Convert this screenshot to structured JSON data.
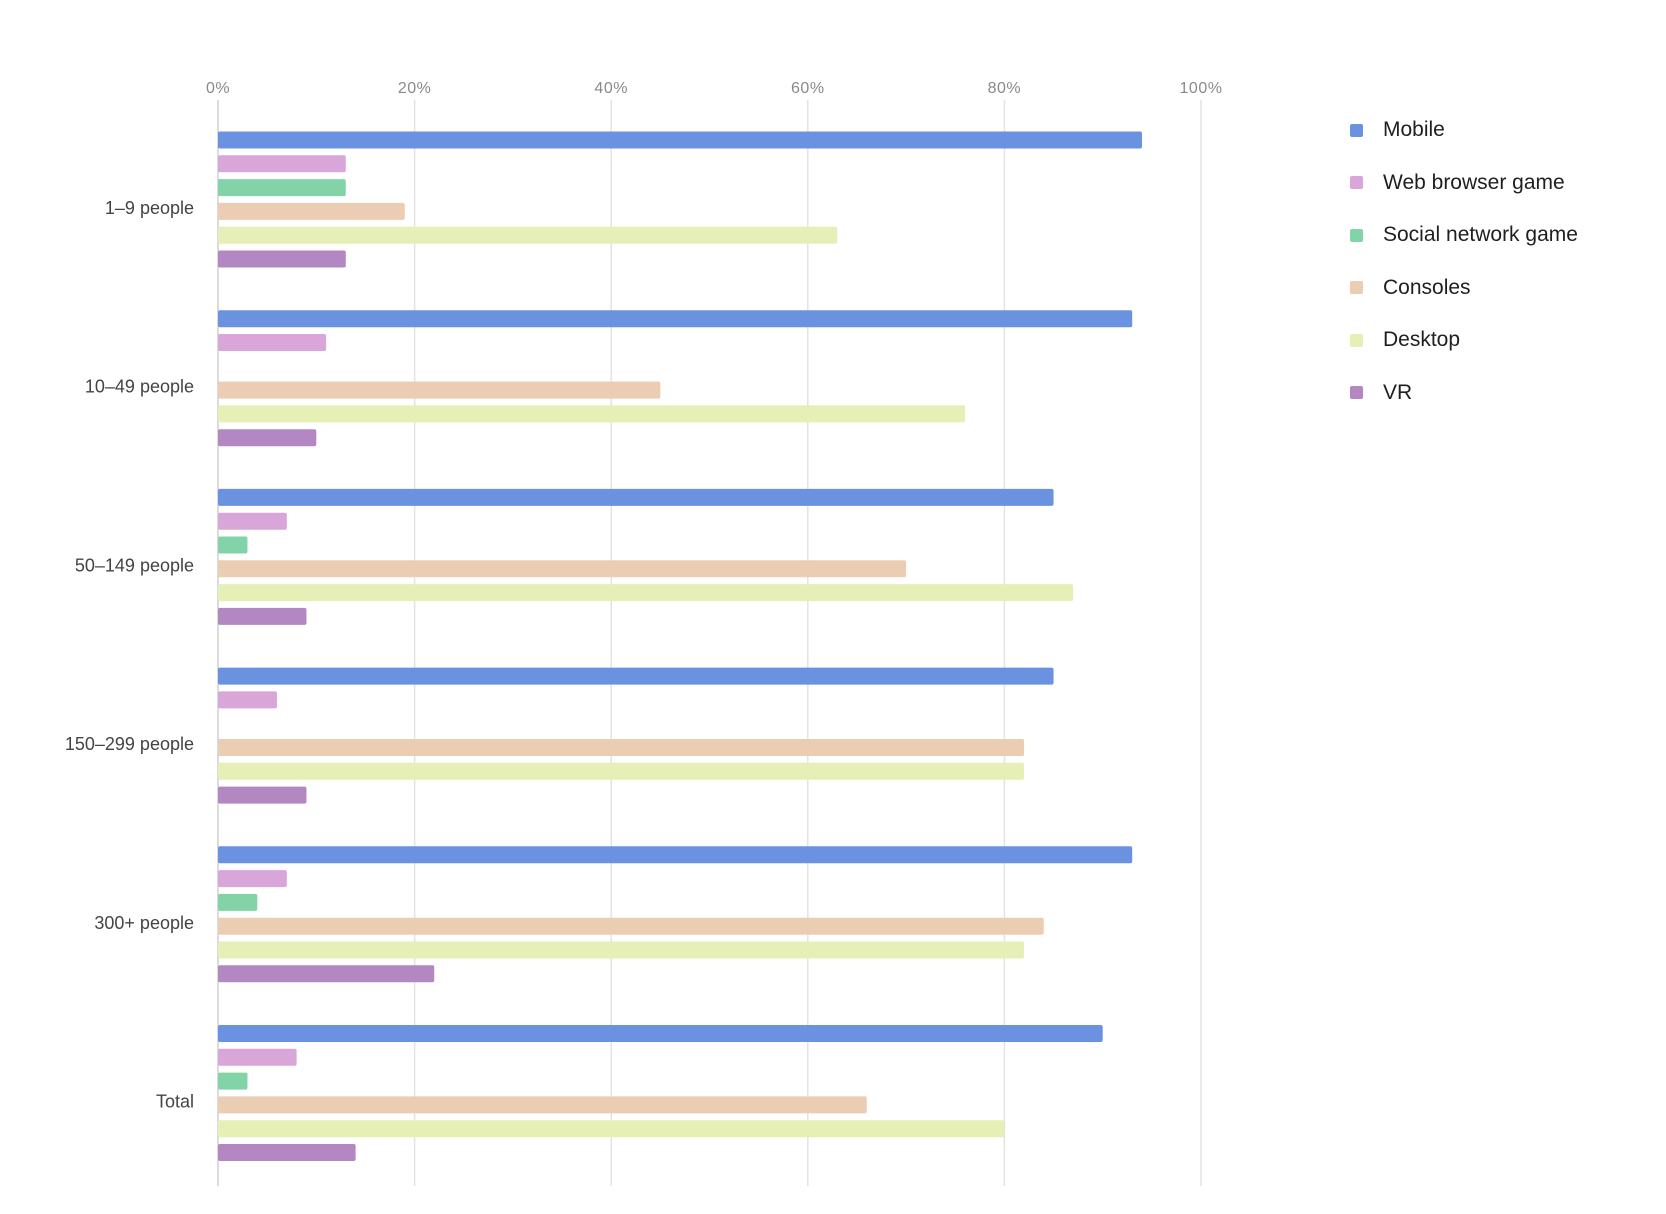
{
  "chart_data": {
    "type": "bar",
    "orientation": "horizontal",
    "categories": [
      "1–9 people",
      "10–49 people",
      "50–149 people",
      "150–299 people",
      "300+ people",
      "Total"
    ],
    "series": [
      {
        "name": "Mobile",
        "color": "#6a92e0",
        "values": [
          94,
          93,
          85,
          85,
          93,
          90
        ]
      },
      {
        "name": "Web browser game",
        "color": "#d9a6d9",
        "values": [
          13,
          11,
          7,
          6,
          7,
          8
        ]
      },
      {
        "name": "Social network game",
        "color": "#82d4a8",
        "values": [
          13,
          0,
          3,
          0,
          4,
          3
        ]
      },
      {
        "name": "Consoles",
        "color": "#ebcdb3",
        "values": [
          19,
          45,
          70,
          82,
          84,
          66
        ]
      },
      {
        "name": "Desktop",
        "color": "#e6efb5",
        "values": [
          63,
          76,
          87,
          82,
          82,
          80
        ]
      },
      {
        "name": "VR",
        "color": "#b388c2",
        "values": [
          13,
          10,
          9,
          9,
          22,
          14
        ]
      }
    ],
    "x_ticks": [
      "0%",
      "20%",
      "40%",
      "60%",
      "80%",
      "100%"
    ],
    "xlim": [
      0,
      100
    ],
    "grid": true,
    "legend_position": "right",
    "title": "",
    "xlabel": "",
    "ylabel": ""
  }
}
